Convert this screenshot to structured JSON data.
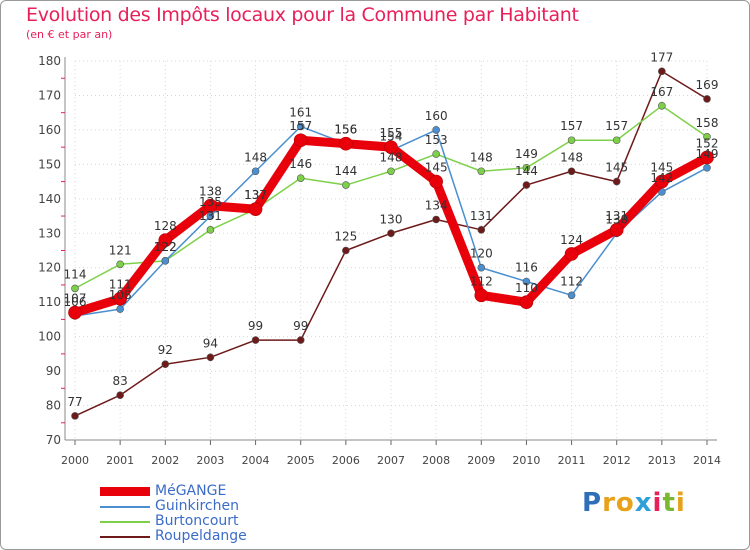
{
  "title": "Evolution des Impôts locaux pour la Commune par Habitant",
  "subtitle": "(en € et par an)",
  "logo": "Proxiti",
  "chart_data": {
    "type": "line",
    "title": "Evolution des Impôts locaux pour la Commune par Habitant",
    "subtitle": "(en € et par an)",
    "xlabel": "",
    "ylabel": "",
    "ylim": [
      70,
      180
    ],
    "yticks": [
      70,
      80,
      90,
      100,
      110,
      120,
      130,
      140,
      150,
      160,
      170,
      180
    ],
    "grid": true,
    "legend_position": "bottom-left",
    "categories": [
      "2000",
      "2001",
      "2002",
      "2003",
      "2004",
      "2005",
      "2006",
      "2007",
      "2008",
      "2009",
      "2010",
      "2011",
      "2012",
      "2013",
      "2014"
    ],
    "series": [
      {
        "name": "MéGANGE",
        "color": "#e8000b",
        "values": [
          107,
          111,
          128,
          138,
          137,
          157,
          156,
          155,
          145,
          112,
          110,
          124,
          131,
          145,
          152
        ]
      },
      {
        "name": "Guinkirchen",
        "color": "#4a8fd0",
        "values": [
          106,
          108,
          122,
          135,
          148,
          161,
          156,
          154,
          160,
          120,
          116,
          112,
          130,
          142,
          149
        ]
      },
      {
        "name": "Burtoncourt",
        "color": "#7ed04a",
        "values": [
          114,
          121,
          122,
          131,
          137,
          146,
          144,
          148,
          153,
          148,
          149,
          157,
          157,
          167,
          158
        ]
      },
      {
        "name": "Roupeldange",
        "color": "#6e1a1a",
        "values": [
          77,
          83,
          92,
          94,
          99,
          99,
          125,
          130,
          134,
          131,
          144,
          148,
          145,
          177,
          169
        ]
      }
    ]
  }
}
